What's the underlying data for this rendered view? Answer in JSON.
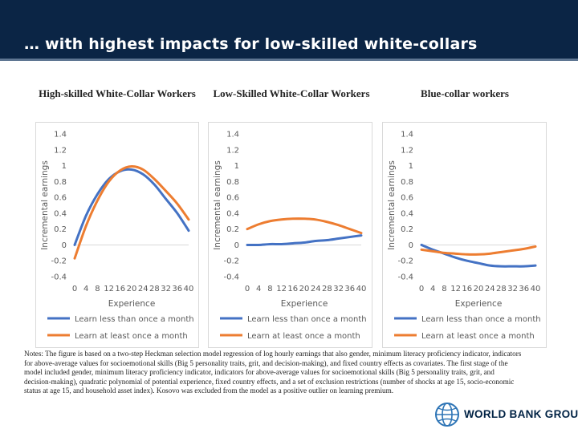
{
  "slide": {
    "title": "… with highest impacts for low-skilled white-collars",
    "notes": "Notes: The figure is based on a two-step Heckman selection model regression of log hourly earnings that also gender, minimum literacy proficiency indicator, indicators for above-average values for socioemotional skills (Big 5 personality traits, grit, and decision-making), and fixed country effects as covariates. The first stage of the model included gender, minimum literacy proficiency indicator, indicators for above-average values for socioemotional skills (Big 5 personality traits, grit, and decision-making), quadratic polynomial of potential experience, fixed country effects, and a set of exclusion restrictions (number of shocks at age 15, socio-economic status at age 15, and household asset index). Kosovo was excluded from the model as a positive outlier on learning premium.",
    "logo_text": "WORLD BANK GROUP"
  },
  "colors": {
    "title_bar": "#0b2545",
    "series_less": "#4472c4",
    "series_more": "#ed7d31",
    "axis_text": "#595959"
  },
  "chart_data": [
    {
      "type": "line",
      "heading": "High-skilled White-Collar Workers",
      "xlabel": "Experience",
      "ylabel": "Incremental earnings",
      "x": [
        0,
        4,
        8,
        12,
        16,
        20,
        24,
        28,
        32,
        36,
        40
      ],
      "x_ticks": [
        "0",
        "4",
        "8",
        "12",
        "16",
        "20",
        "24",
        "28",
        "32",
        "36",
        "40"
      ],
      "y_ticks": [
        "1.4",
        "1.2",
        "1",
        "0.8",
        "0.6",
        "0.4",
        "0.2",
        "0",
        "-0.2",
        "-0.4"
      ],
      "ylim": [
        -0.4,
        1.4
      ],
      "legend_position": "bottom",
      "series": [
        {
          "name": "Learn less than once a month",
          "values": [
            0.0,
            0.37,
            0.64,
            0.83,
            0.93,
            0.95,
            0.89,
            0.76,
            0.58,
            0.4,
            0.18
          ]
        },
        {
          "name": "Learn at least once a month",
          "values": [
            -0.17,
            0.24,
            0.56,
            0.8,
            0.94,
            0.99,
            0.95,
            0.83,
            0.68,
            0.52,
            0.32
          ]
        }
      ]
    },
    {
      "type": "line",
      "heading": "Low-Skilled White-Collar Workers",
      "xlabel": "Experience",
      "ylabel": "Incremental earnings",
      "x": [
        0,
        4,
        8,
        12,
        16,
        20,
        24,
        28,
        32,
        36,
        40
      ],
      "x_ticks": [
        "0",
        "4",
        "8",
        "12",
        "16",
        "20",
        "24",
        "28",
        "32",
        "36",
        "40"
      ],
      "y_ticks": [
        "1.4",
        "1.2",
        "1",
        "0.8",
        "0.6",
        "0.4",
        "0.2",
        "0",
        "-0.2",
        "-0.4"
      ],
      "ylim": [
        -0.4,
        1.4
      ],
      "legend_position": "bottom",
      "series": [
        {
          "name": "Learn less than once a month",
          "values": [
            0.0,
            0.0,
            0.01,
            0.01,
            0.02,
            0.03,
            0.05,
            0.06,
            0.08,
            0.1,
            0.12
          ]
        },
        {
          "name": "Learn at least once a month",
          "values": [
            0.2,
            0.26,
            0.3,
            0.32,
            0.33,
            0.33,
            0.32,
            0.29,
            0.25,
            0.2,
            0.15
          ]
        }
      ]
    },
    {
      "type": "line",
      "heading": "Blue-collar workers",
      "xlabel": "Experience",
      "ylabel": "Incremental earnings",
      "x": [
        0,
        4,
        8,
        12,
        16,
        20,
        24,
        28,
        32,
        36,
        40
      ],
      "x_ticks": [
        "0",
        "4",
        "8",
        "12",
        "16",
        "20",
        "24",
        "28",
        "32",
        "36",
        "40"
      ],
      "y_ticks": [
        "1.4",
        "1.2",
        "1",
        "0.8",
        "0.6",
        "0.4",
        "0.2",
        "0",
        "-0.2",
        "-0.4"
      ],
      "ylim": [
        -0.4,
        1.4
      ],
      "legend_position": "bottom",
      "series": [
        {
          "name": "Learn less than once a month",
          "values": [
            0.0,
            -0.06,
            -0.11,
            -0.16,
            -0.2,
            -0.23,
            -0.26,
            -0.27,
            -0.27,
            -0.27,
            -0.26
          ]
        },
        {
          "name": "Learn at least once a month",
          "values": [
            -0.06,
            -0.08,
            -0.1,
            -0.11,
            -0.12,
            -0.12,
            -0.11,
            -0.09,
            -0.07,
            -0.05,
            -0.02
          ]
        }
      ]
    }
  ]
}
